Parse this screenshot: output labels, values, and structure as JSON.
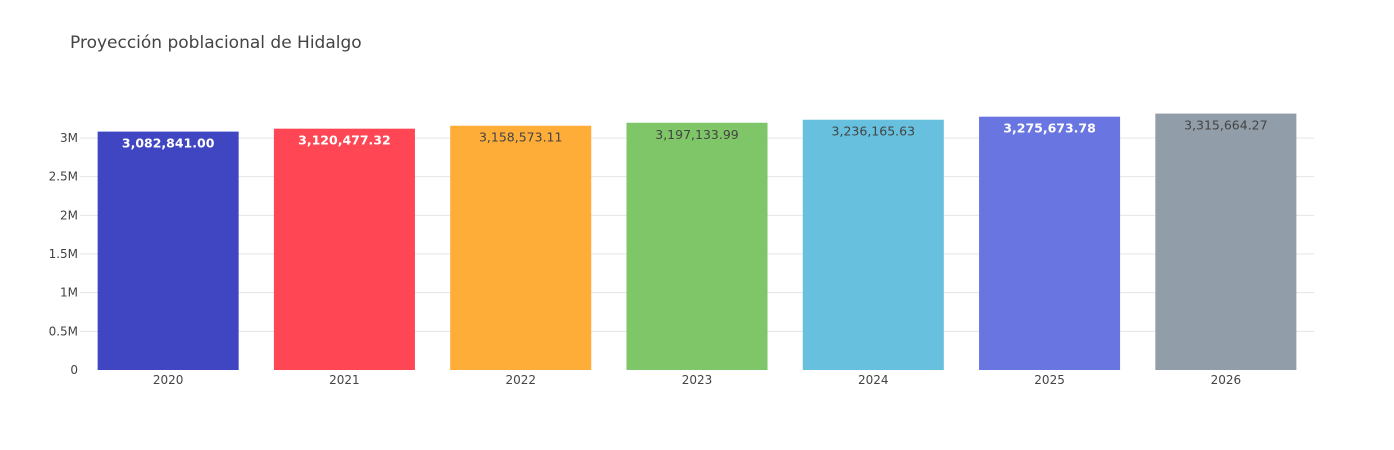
{
  "chart_data": {
    "type": "bar",
    "title": "Proyección poblacional de Hidalgo",
    "xlabel": "",
    "ylabel": "",
    "categories": [
      "2020",
      "2021",
      "2022",
      "2023",
      "2024",
      "2025",
      "2026"
    ],
    "values": [
      3082841.0,
      3120477.32,
      3158573.11,
      3197133.99,
      3236165.63,
      3275673.78,
      3315664.27
    ],
    "value_labels": [
      "3,082,841.00",
      "3,120,477.32",
      "3,158,573.11",
      "3,197,133.99",
      "3,236,165.63",
      "3,275,673.78",
      "3,315,664.27"
    ],
    "label_colors": [
      "#ffffff",
      "#ffffff",
      "#444444",
      "#444444",
      "#444444",
      "#ffffff",
      "#444444"
    ],
    "label_bold": [
      true,
      true,
      false,
      false,
      false,
      true,
      false
    ],
    "bar_colors": [
      "#4046c2",
      "#ff4654",
      "#ffad39",
      "#7ec667",
      "#66c0de",
      "#6975e0",
      "#929daa"
    ],
    "ylim": [
      0,
      3300000
    ],
    "yticks": [
      0,
      500000,
      1000000,
      1500000,
      2000000,
      2500000,
      3000000
    ],
    "ytick_labels": [
      "0",
      "0.5M",
      "1M",
      "1.5M",
      "2M",
      "2.5M",
      "3M"
    ],
    "grid": true,
    "legend": "none"
  }
}
